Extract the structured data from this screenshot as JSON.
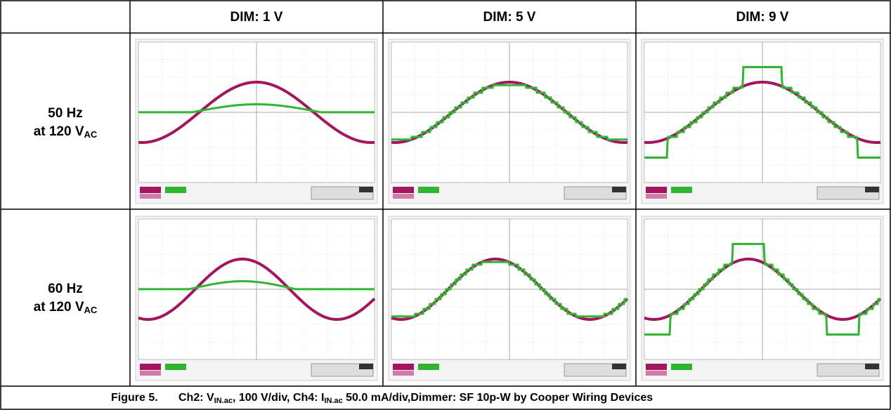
{
  "table": {
    "header": [
      "DIM: 1 V",
      "DIM: 5 V",
      "DIM: 9 V"
    ],
    "rows": [
      {
        "label": "50 Hz",
        "condition": "at 120 V",
        "subscript": "AC"
      },
      {
        "label": "60 Hz",
        "condition": "at 120 V",
        "subscript": "AC"
      }
    ]
  },
  "caption": {
    "label": "Figure 5.",
    "parts": [
      "Ch2: V",
      "IN.ac",
      ", 100 V/div, Ch4: I",
      "IN.ac",
      " 50.0 mA/div,Dimmer: SF 10p-W by Cooper Wiring Devices"
    ]
  }
}
